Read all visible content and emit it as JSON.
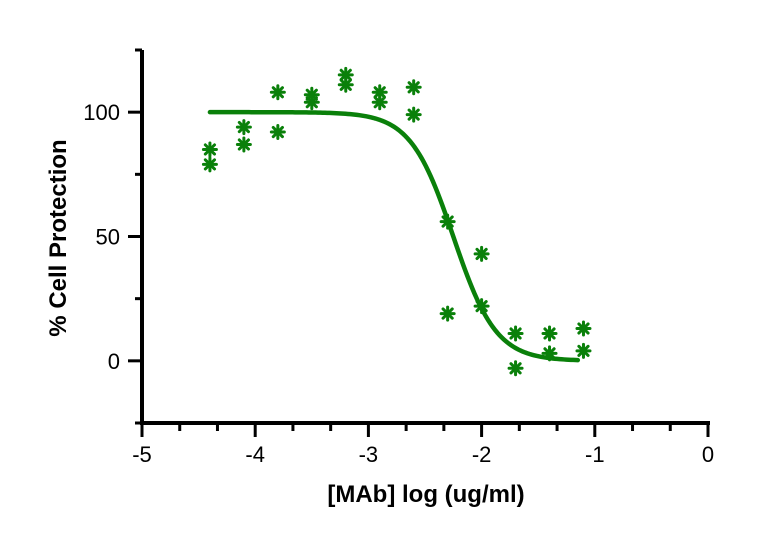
{
  "chart_data": {
    "type": "scatter",
    "title": "",
    "xlabel": "[MAb] log (ug/ml)",
    "ylabel": "% Cell Protection",
    "xlim": [
      -5,
      0
    ],
    "ylim": [
      -25,
      125
    ],
    "x_ticks": [
      -5,
      -4,
      -3,
      -2,
      -1,
      0
    ],
    "x_tick_labels": [
      "-5",
      "-4",
      "-3",
      "-2",
      "-1",
      "0"
    ],
    "y_ticks": [
      0,
      50,
      100
    ],
    "y_tick_labels": [
      "0",
      "50",
      "100"
    ],
    "grid": false,
    "legend": "none",
    "color": "#0a800a",
    "series": [
      {
        "marker": "asterisk",
        "points": [
          [
            -4.4,
            85
          ],
          [
            -4.4,
            79
          ],
          [
            -4.1,
            94
          ],
          [
            -4.1,
            87
          ],
          [
            -3.8,
            108
          ],
          [
            -3.8,
            92
          ],
          [
            -3.5,
            107
          ],
          [
            -3.5,
            104
          ],
          [
            -3.2,
            115
          ],
          [
            -3.2,
            111
          ],
          [
            -2.9,
            108
          ],
          [
            -2.9,
            104
          ],
          [
            -2.6,
            110
          ],
          [
            -2.6,
            99
          ],
          [
            -2.3,
            56
          ],
          [
            -2.3,
            19
          ],
          [
            -2.0,
            43
          ],
          [
            -2.0,
            22
          ],
          [
            -1.7,
            11
          ],
          [
            -1.7,
            -3
          ],
          [
            -1.4,
            11
          ],
          [
            -1.4,
            3
          ],
          [
            -1.1,
            13
          ],
          [
            -1.1,
            4
          ]
        ]
      },
      {
        "type": "line",
        "fit": {
          "model": "sigmoid",
          "top": 100,
          "bottom": 0,
          "logIC50": -2.25,
          "hill": -2.3
        },
        "x_range": [
          -4.4,
          -1.15
        ]
      }
    ]
  }
}
